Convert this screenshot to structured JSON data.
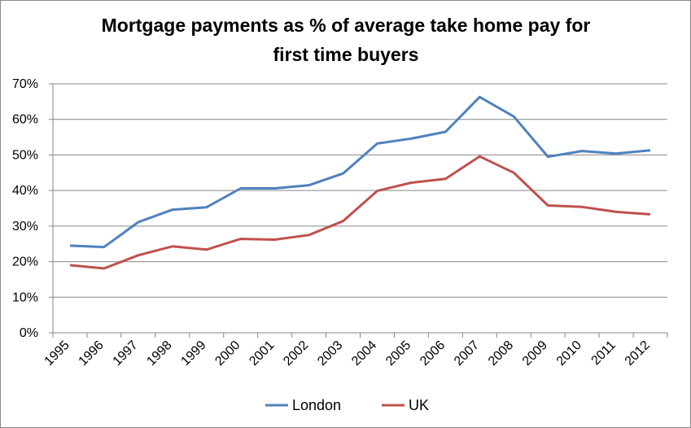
{
  "chart_data": {
    "type": "line",
    "title_lines": [
      "Mortgage payments as % of average take home pay for",
      "first time buyers"
    ],
    "xlabel": "",
    "ylabel": "",
    "categories": [
      "1995",
      "1996",
      "1997",
      "1998",
      "1999",
      "2000",
      "2001",
      "2002",
      "2003",
      "2004",
      "2005",
      "2006",
      "2007",
      "2008",
      "2009",
      "2010",
      "2011",
      "2012"
    ],
    "y_ticks": [
      "0%",
      "10%",
      "20%",
      "30%",
      "40%",
      "50%",
      "60%",
      "70%"
    ],
    "ylim": [
      0,
      70
    ],
    "grid": "horizontal",
    "legend_position": "bottom",
    "series": [
      {
        "name": "London",
        "color": "#4f81bd",
        "values": [
          24.5,
          24.1,
          31.1,
          34.6,
          35.3,
          40.6,
          40.6,
          41.5,
          44.8,
          53.2,
          54.6,
          56.5,
          66.3,
          60.8,
          49.5,
          51.1,
          50.4,
          51.3
        ]
      },
      {
        "name": "UK",
        "color": "#c0504d",
        "values": [
          19.0,
          18.1,
          21.8,
          24.3,
          23.4,
          26.4,
          26.2,
          27.5,
          31.4,
          39.9,
          42.2,
          43.3,
          49.6,
          45.0,
          35.8,
          35.4,
          34.0,
          33.3
        ]
      }
    ]
  }
}
